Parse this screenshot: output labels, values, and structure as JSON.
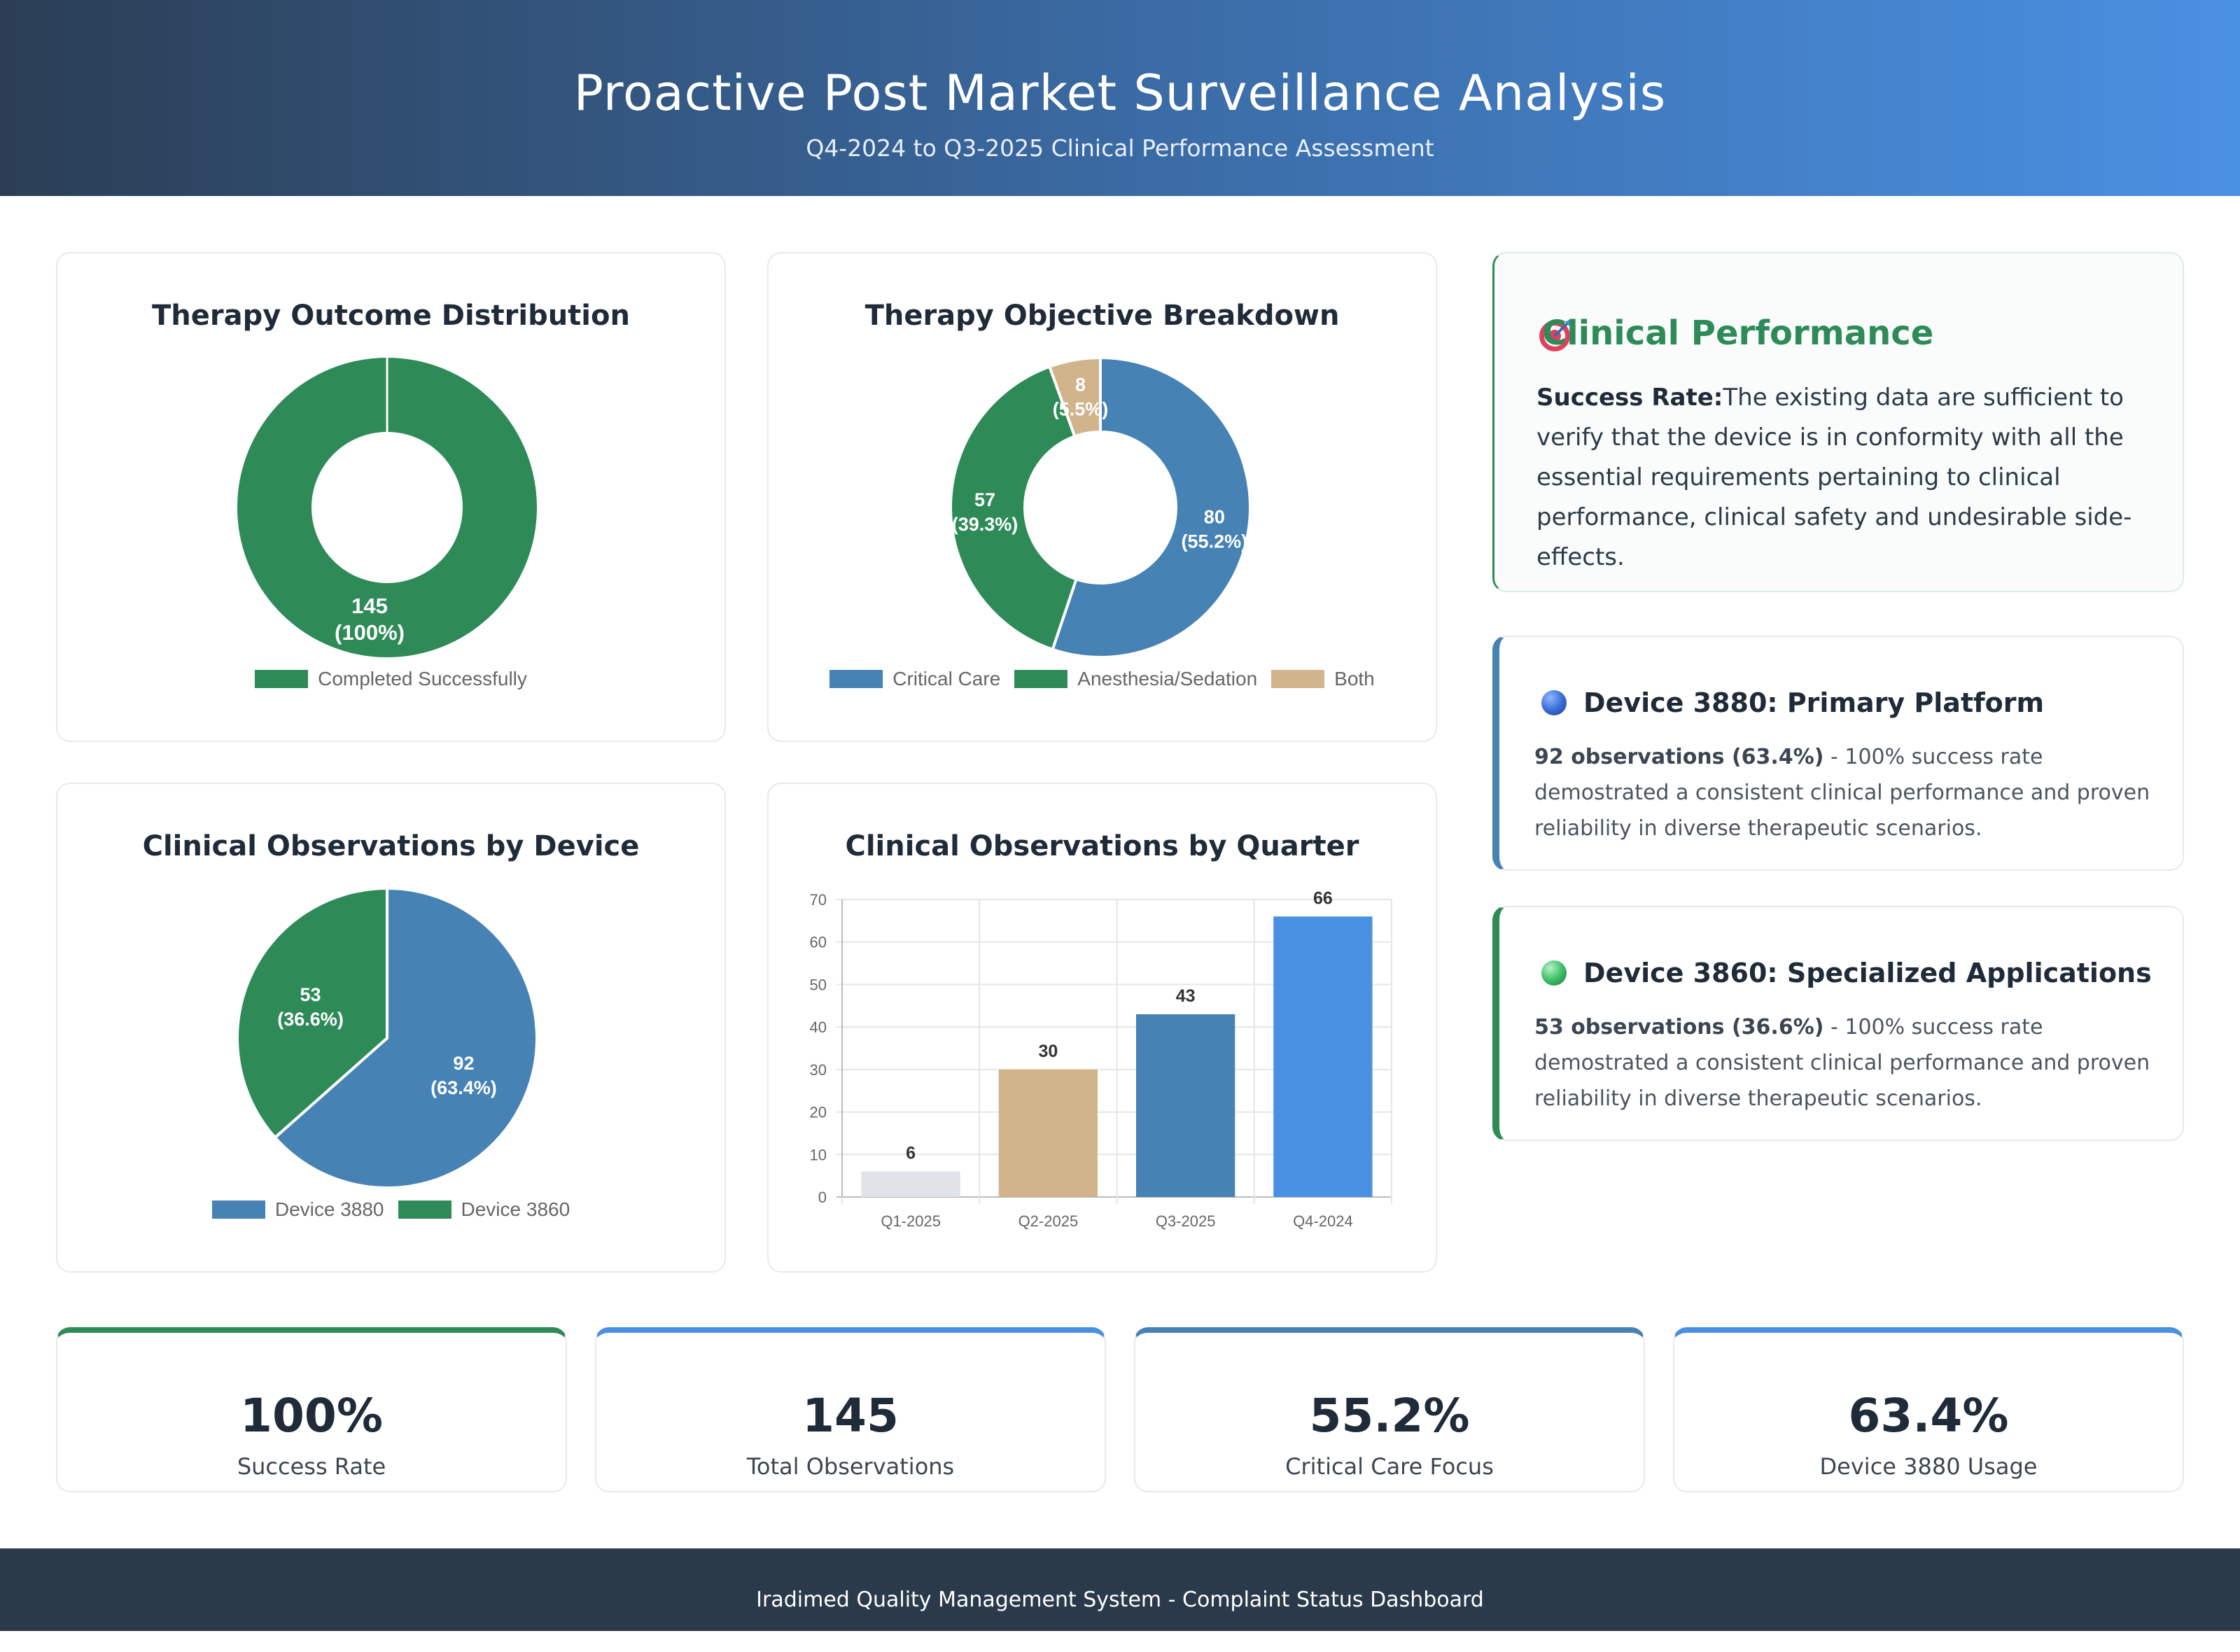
{
  "header": {
    "title": "Proactive Post Market Surveillance Analysis",
    "subtitle": "Q4-2024 to Q3-2025 Clinical Performance Assessment"
  },
  "colors": {
    "green": "#2e8b57",
    "steel_blue": "#4682b4",
    "tan": "#d2b48c",
    "bright_blue": "#4a90e2",
    "light_gray": "#e0e3e8"
  },
  "chart_data": [
    {
      "type": "pie",
      "title": "Therapy Outcome Distribution",
      "donut": true,
      "categories": [
        "Completed Successfully"
      ],
      "values": [
        145
      ],
      "labels": [
        "145",
        "(100%)"
      ],
      "colors": [
        "#2e8b57"
      ],
      "legend": "bottom"
    },
    {
      "type": "pie",
      "title": "Therapy Objective Breakdown",
      "donut": true,
      "categories": [
        "Critical Care",
        "Anesthesia/Sedation",
        "Both"
      ],
      "values": [
        80,
        57,
        8
      ],
      "percent_labels": [
        "(55.2%)",
        "(39.3%)",
        "(5.5%)"
      ],
      "colors": [
        "#4682b4",
        "#2e8b57",
        "#d2b48c"
      ],
      "legend": "bottom"
    },
    {
      "type": "pie",
      "title": "Clinical Observations by Device",
      "donut": false,
      "categories": [
        "Device 3880",
        "Device 3860"
      ],
      "values": [
        92,
        53
      ],
      "percent_labels": [
        "(63.4%)",
        "(36.6%)"
      ],
      "colors": [
        "#4682b4",
        "#2e8b57"
      ],
      "legend": "bottom"
    },
    {
      "type": "bar",
      "title": "Clinical Observations by Quarter",
      "categories": [
        "Q1-2025",
        "Q2-2025",
        "Q3-2025",
        "Q4-2024"
      ],
      "values": [
        6,
        30,
        43,
        66
      ],
      "colors": [
        "#e0e3e8",
        "#d2b48c",
        "#4682b4",
        "#4a90e2"
      ],
      "ylim": [
        0,
        70
      ],
      "yticks": [
        0,
        10,
        20,
        30,
        40,
        50,
        60,
        70
      ],
      "grid": true,
      "legend": "none"
    }
  ],
  "performance": {
    "icon": "target-icon",
    "title": "Clinical Performance",
    "lead": "Success Rate:",
    "text": "The existing data are sufficient to verify that the device is in conformity with all the essential requirements pertaining to clinical performance, clinical safety and undesirable side-effects."
  },
  "devices": [
    {
      "title": "Device 3880: Primary Platform",
      "count": "92 observations (63.4%)",
      "text": " - 100% success rate demostrated a consistent clinical performance and proven reliability in diverse therapeutic scenarios."
    },
    {
      "title": "Device 3860: Specialized Applications",
      "count": "53 observations (36.6%)",
      "text": " - 100% success rate demostrated a consistent clinical performance and proven reliability in diverse therapeutic scenarios."
    }
  ],
  "stats": [
    {
      "value": "100%",
      "label": "Success Rate",
      "accent": "#2e8b57"
    },
    {
      "value": "145",
      "label": "Total Observations",
      "accent": "#4a90e2"
    },
    {
      "value": "55.2%",
      "label": "Critical Care Focus",
      "accent": "#4682b4"
    },
    {
      "value": "63.4%",
      "label": "Device 3880 Usage",
      "accent": "#4a90e2"
    }
  ],
  "footer": {
    "text": "Iradimed Quality Management System - Complaint Status Dashboard"
  }
}
